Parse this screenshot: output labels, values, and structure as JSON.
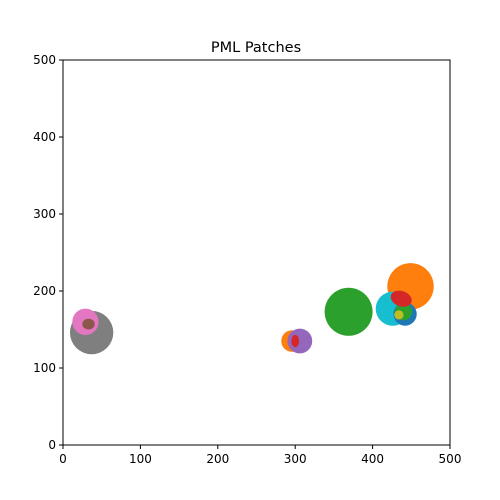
{
  "chart_data": {
    "type": "scatter",
    "title": "PML Patches",
    "xlabel": "",
    "ylabel": "",
    "xlim": [
      0,
      500
    ],
    "ylim": [
      0,
      500
    ],
    "xticks": [
      0,
      100,
      200,
      300,
      400,
      500
    ],
    "yticks": [
      0,
      100,
      200,
      300,
      400,
      500
    ],
    "grid": false,
    "legend": "none",
    "colors": {
      "axis": "#000000",
      "background": "#ffffff"
    },
    "patches": [
      {
        "shape": "circle",
        "cx": 37,
        "cy": 146,
        "r": 28,
        "color": "#7f7f7f"
      },
      {
        "shape": "circle",
        "cx": 38,
        "cy": 147,
        "r": 13,
        "color": "#7f7f7f"
      },
      {
        "shape": "circle",
        "cx": 29,
        "cy": 160,
        "r": 17,
        "color": "#e377c2"
      },
      {
        "shape": "ellipse",
        "cx": 33,
        "cy": 157,
        "rx": 8,
        "ry": 7,
        "color": "#8c564b"
      },
      {
        "shape": "circle",
        "cx": 296,
        "cy": 135,
        "r": 14,
        "color": "#ff7f0e"
      },
      {
        "shape": "circle",
        "cx": 306,
        "cy": 135,
        "r": 16,
        "color": "#9467bd"
      },
      {
        "shape": "ellipse",
        "cx": 300,
        "cy": 135,
        "rx": 5,
        "ry": 8,
        "color": "#d62728"
      },
      {
        "shape": "circle",
        "cx": 369,
        "cy": 173,
        "r": 31,
        "color": "#2ca02c"
      },
      {
        "shape": "circle",
        "cx": 449,
        "cy": 206,
        "r": 30,
        "color": "#ff7f0e"
      },
      {
        "shape": "circle",
        "cx": 426,
        "cy": 177,
        "r": 22,
        "color": "#17becf"
      },
      {
        "shape": "circle",
        "cx": 442,
        "cy": 170,
        "r": 15,
        "color": "#1f77b4"
      },
      {
        "shape": "circle",
        "cx": 440,
        "cy": 173,
        "r": 11,
        "color": "#2ca02c"
      },
      {
        "shape": "circle",
        "cx": 434,
        "cy": 169,
        "r": 6,
        "color": "#bcbd22"
      },
      {
        "shape": "ellipse",
        "cx": 437,
        "cy": 190,
        "rx": 14,
        "ry": 10,
        "rotate": 20,
        "color": "#d62728"
      }
    ]
  }
}
